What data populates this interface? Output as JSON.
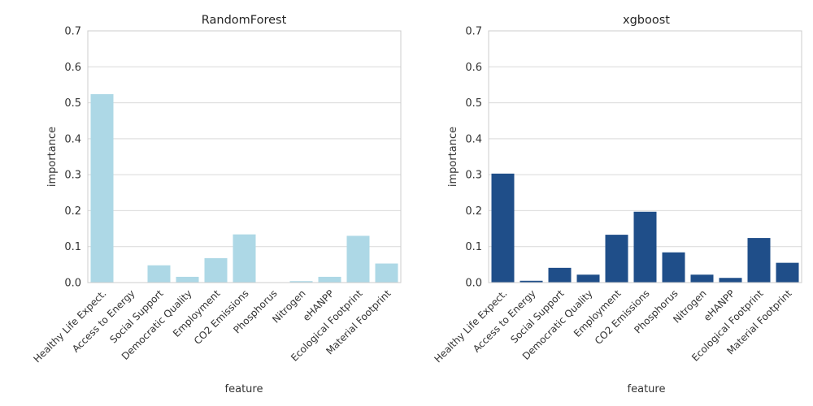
{
  "chart_data": [
    {
      "type": "bar",
      "title": "RandomForest",
      "xlabel": "feature",
      "ylabel": "importance",
      "ylim": [
        0,
        0.7
      ],
      "yticks": [
        "0.0",
        "0.1",
        "0.2",
        "0.3",
        "0.4",
        "0.5",
        "0.6",
        "0.7"
      ],
      "grid": true,
      "bar_color": "#add8e6",
      "categories": [
        "Healthy Life Expect.",
        "Access to Energy",
        "Social Support",
        "Democratic Quality",
        "Employment",
        "CO2 Emissions",
        "Phosphorus",
        "Nitrogen",
        "eHANPP",
        "Ecological Footprint",
        "Material Footprint"
      ],
      "values": [
        0.524,
        0.0,
        0.048,
        0.016,
        0.068,
        0.134,
        0.0,
        0.004,
        0.016,
        0.13,
        0.053
      ]
    },
    {
      "type": "bar",
      "title": "xgboost",
      "xlabel": "feature",
      "ylabel": "importance",
      "ylim": [
        0,
        0.7
      ],
      "yticks": [
        "0.0",
        "0.1",
        "0.2",
        "0.3",
        "0.4",
        "0.5",
        "0.6",
        "0.7"
      ],
      "grid": true,
      "bar_color": "#1f4e89",
      "categories": [
        "Healthy Life Expect.",
        "Access to Energy",
        "Social Support",
        "Democratic Quality",
        "Employment",
        "CO2 Emissions",
        "Phosphorus",
        "Nitrogen",
        "eHANPP",
        "Ecological Footprint",
        "Material Footprint"
      ],
      "values": [
        0.303,
        0.005,
        0.041,
        0.022,
        0.133,
        0.197,
        0.084,
        0.022,
        0.013,
        0.124,
        0.055
      ]
    }
  ]
}
